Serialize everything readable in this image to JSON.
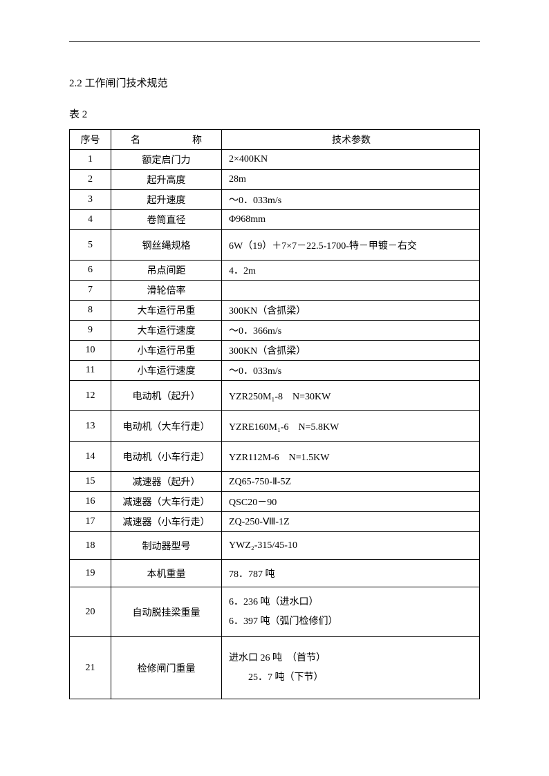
{
  "section_title": "2.2 工作闸门技术规范",
  "table_label": "表 2",
  "headers": {
    "seq": "序号",
    "name_left": "名",
    "name_right": "称",
    "param": "技术参数"
  },
  "rows": [
    {
      "seq": "1",
      "name": "额定启门力",
      "param": "2×400KN"
    },
    {
      "seq": "2",
      "name": "起升高度",
      "param": "28m"
    },
    {
      "seq": "3",
      "name": "起升速度",
      "param": "～0．033m/s"
    },
    {
      "seq": "4",
      "name": "卷筒直径",
      "param": "Φ968mm"
    },
    {
      "seq": "5",
      "name": "钢丝绳规格",
      "param": "6W（19）＋7×7－22.5-1700-特－甲镀－右交"
    },
    {
      "seq": "6",
      "name": "吊点间距",
      "param": "4．2m"
    },
    {
      "seq": "7",
      "name": "滑轮倍率",
      "param": ""
    },
    {
      "seq": "8",
      "name": "大车运行吊重",
      "param": "300KN（含抓梁）"
    },
    {
      "seq": "9",
      "name": "大车运行速度",
      "param": "～0．366m/s"
    },
    {
      "seq": "10",
      "name": "小车运行吊重",
      "param": "300KN（含抓梁）"
    },
    {
      "seq": "11",
      "name": "小车运行速度",
      "param": "～0．033m/s"
    },
    {
      "seq": "12",
      "name": "电动机（起升）",
      "param": "YZR250M₁-8　N=30KW"
    },
    {
      "seq": "13",
      "name": "电动机（大车行走）",
      "param": "YZRE160M₁-6　N=5.8KW"
    },
    {
      "seq": "14",
      "name": "电动机（小车行走）",
      "param": "YZR112M-6　N=1.5KW"
    },
    {
      "seq": "15",
      "name": "减速器（起升）",
      "param": "ZQ65-750-Ⅱ-5Z"
    },
    {
      "seq": "16",
      "name": "减速器（大车行走）",
      "param": "QSC20－90"
    },
    {
      "seq": "17",
      "name": "减速器（小车行走）",
      "param": "ZQ-250-Ⅷ-1Z"
    },
    {
      "seq": "18",
      "name": "制动器型号",
      "param": "YWZ₂-315/45-10"
    },
    {
      "seq": "19",
      "name": "本机重量",
      "param": "78．787 吨"
    },
    {
      "seq": "20",
      "name": "自动脱挂梁重量",
      "param_line1": "6．236 吨（进水口）",
      "param_line2": "6．397 吨（弧门检修们）"
    },
    {
      "seq": "21",
      "name": "检修闸门重量",
      "param_line1": "进水口 26 吨　（首节）",
      "param_line2": "25．7 吨（下节）"
    }
  ],
  "colors": {
    "background": "#ffffff",
    "text": "#000000",
    "border": "#000000"
  },
  "fonts": {
    "body_size": 14,
    "title_size": 15
  }
}
